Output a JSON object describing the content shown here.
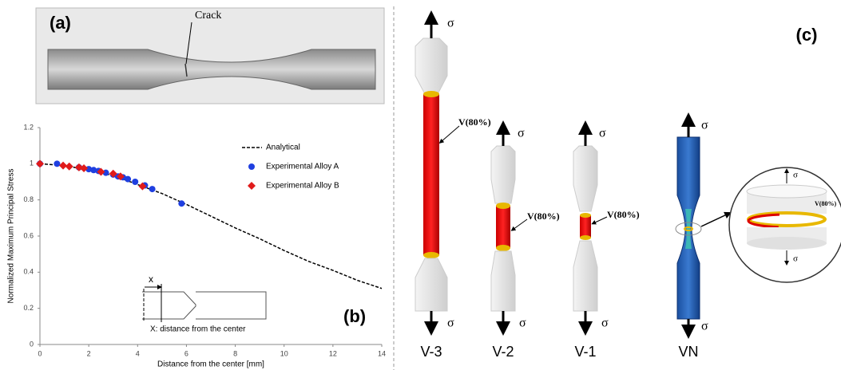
{
  "panel_a": {
    "label": "(a)",
    "annotation": "Crack"
  },
  "chart_data": {
    "type": "line",
    "panel_label": "(b)",
    "x_label": "Distance from the center [mm]",
    "y_label": "Normalized  Maximum Principal Stress",
    "xlim": [
      0,
      14
    ],
    "ylim": [
      0,
      1.2
    ],
    "xticks": [
      0,
      2,
      4,
      6,
      8,
      10,
      12,
      14
    ],
    "yticks": [
      0,
      0.2,
      0.4,
      0.6,
      0.8,
      1,
      1.2
    ],
    "legend": "upper right",
    "series": [
      {
        "name": "Analytical",
        "color": "#000000",
        "style": "dashed",
        "x": [
          0,
          1,
          2,
          3,
          4,
          5,
          6,
          7,
          8,
          9,
          10,
          11,
          12,
          13,
          14
        ],
        "values": [
          1,
          0.99,
          0.965,
          0.935,
          0.885,
          0.835,
          0.775,
          0.71,
          0.645,
          0.585,
          0.52,
          0.46,
          0.41,
          0.355,
          0.31
        ]
      },
      {
        "name": "Experimental Alloy A",
        "color": "#1f3fe0",
        "marker": "circle",
        "x": [
          0,
          0.7,
          1.6,
          2.0,
          2.2,
          2.4,
          2.7,
          3.0,
          3.2,
          3.4,
          3.6,
          3.9,
          4.3,
          4.6,
          5.8
        ],
        "values": [
          1,
          1,
          0.98,
          0.97,
          0.965,
          0.96,
          0.95,
          0.94,
          0.93,
          0.925,
          0.915,
          0.9,
          0.88,
          0.86,
          0.78
        ]
      },
      {
        "name": "Experimental Alloy B",
        "color": "#e01b1b",
        "marker": "diamond",
        "x": [
          0,
          0.95,
          1.2,
          1.6,
          1.8,
          2.5,
          3.0,
          3.3,
          4.2
        ],
        "values": [
          1,
          0.99,
          0.985,
          0.98,
          0.975,
          0.955,
          0.945,
          0.93,
          0.875
        ]
      }
    ],
    "inset": {
      "symbol": "x",
      "caption": "X: distance from the center"
    }
  },
  "panel_c": {
    "label": "(c)",
    "stress": "σ",
    "specimens": [
      {
        "name": "V-3",
        "volume_label": "V(80%)"
      },
      {
        "name": "V-2",
        "volume_label": "V(80%)"
      },
      {
        "name": "V-1",
        "volume_label": "V(80%)"
      },
      {
        "name": "VN",
        "volume_label": "V(80%)"
      }
    ]
  }
}
